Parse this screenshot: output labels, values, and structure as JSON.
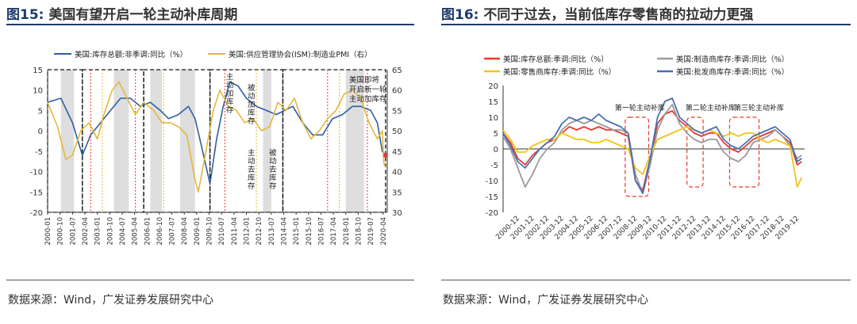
{
  "left": {
    "fig_num": "图15:",
    "fig_title": "美国有望开启一轮主动补库周期",
    "source": "数据来源：Wind，广发证券发展研究中心",
    "chart_data": {
      "type": "line",
      "legend": [
        "美国:库存总额:非季调:同比（%）",
        "美国:供应管理协会(ISM):制造业PMI（右）"
      ],
      "legend_placement": "top",
      "ylim_left": [
        -20,
        15
      ],
      "ylim_right": [
        30,
        65
      ],
      "yticks_left": [
        "15",
        "10",
        "5",
        "0",
        "-5",
        "-10",
        "-15",
        "-20"
      ],
      "yticks_right": [
        "65",
        "60",
        "55",
        "50",
        "45",
        "40",
        "35",
        "30"
      ],
      "x_ticks": [
        "2000-01",
        "2000-10",
        "2001-07",
        "2002-04",
        "2003-01",
        "2003-10",
        "2004-07",
        "2005-04",
        "2006-01",
        "2006-10",
        "2007-07",
        "2008-04",
        "2009-01",
        "2009-10",
        "2010-07",
        "2011-04",
        "2012-01",
        "2012-10",
        "2013-07",
        "2014-04",
        "2015-01",
        "2015-10",
        "2016-07",
        "2017-04",
        "2018-01",
        "2018-10",
        "2019-07",
        "2020-04"
      ],
      "annotations": [
        "主动加库存",
        "被动加库存",
        "主动去库存",
        "被动去库存",
        "美国即将开启新一轮主动加库存"
      ],
      "series": [
        {
          "name": "美国:库存总额:非季调:同比（%）",
          "color": "#2e5fa3",
          "axis": "left",
          "x": [
            2000.0,
            2000.8,
            2001.5,
            2002.1,
            2002.6,
            2003.2,
            2003.8,
            2004.4,
            2005.0,
            2005.6,
            2006.2,
            2006.8,
            2007.3,
            2007.9,
            2008.5,
            2008.9,
            2009.3,
            2009.8,
            2010.2,
            2010.6,
            2011.0,
            2011.5,
            2012.0,
            2012.6,
            2013.2,
            2013.8,
            2014.3,
            2014.8,
            2015.4,
            2016.0,
            2016.6,
            2017.2,
            2017.8,
            2018.4,
            2018.9,
            2019.5,
            2019.9,
            2020.2,
            2020.4
          ],
          "y": [
            7,
            8,
            2,
            -6,
            -1,
            2,
            5,
            8,
            8,
            6,
            7,
            5,
            3,
            4,
            6,
            3,
            -4,
            -13,
            -2,
            6,
            12,
            11,
            8,
            6,
            5,
            4,
            5,
            6,
            2,
            -1,
            -1,
            3,
            4,
            6,
            6,
            5,
            2,
            -5,
            -6
          ]
        },
        {
          "name": "美国:供应管理协会(ISM):制造业PMI（右）",
          "color": "#e3b83c",
          "axis": "right",
          "x": [
            2000.0,
            2000.6,
            2001.1,
            2001.5,
            2002.0,
            2002.5,
            2003.0,
            2003.4,
            2003.9,
            2004.3,
            2004.8,
            2005.3,
            2005.8,
            2006.4,
            2006.9,
            2007.4,
            2007.9,
            2008.4,
            2008.9,
            2009.1,
            2009.6,
            2010.0,
            2010.4,
            2010.9,
            2011.4,
            2011.9,
            2012.4,
            2012.9,
            2013.4,
            2013.9,
            2014.4,
            2014.9,
            2015.4,
            2015.9,
            2016.4,
            2016.9,
            2017.4,
            2017.9,
            2018.4,
            2018.9,
            2019.4,
            2019.9,
            2020.2,
            2020.3,
            2020.4
          ],
          "y": [
            57,
            51,
            43,
            44,
            50,
            52,
            48,
            54,
            60,
            62,
            58,
            54,
            57,
            55,
            52,
            52,
            51,
            49,
            38,
            35,
            46,
            55,
            60,
            56,
            55,
            52,
            53,
            50,
            51,
            57,
            55,
            58,
            52,
            48,
            50,
            53,
            55,
            59,
            60,
            58,
            52,
            48,
            50,
            42,
            41
          ]
        }
      ]
    }
  },
  "right": {
    "fig_num": "图16:",
    "fig_title": "不同于过去，当前低库存零售商的拉动力更强",
    "source": "数据来源：Wind，广发证券发展研究中心",
    "chart_data": {
      "type": "line",
      "legend": [
        "美国:库存总额:季调:同比（%）",
        "美国:制造商库存:季调:同比（%）",
        "美国:零售商库存:季调:同比（%）",
        "美国:批发商库存:季调:同比（%）"
      ],
      "legend_placement": "top",
      "ylim": [
        -20,
        20
      ],
      "yticks": [
        "20",
        "15",
        "10",
        "5",
        "0",
        "-5",
        "-10",
        "-15",
        "-20"
      ],
      "x_ticks": [
        "2000-12",
        "2001-12",
        "2002-12",
        "2003-12",
        "2004-12",
        "2005-12",
        "2006-12",
        "2007-12",
        "2008-12",
        "2009-12",
        "2010-12",
        "2011-12",
        "2012-12",
        "2013-12",
        "2014-12",
        "2015-12",
        "2016-12",
        "2017-12",
        "2018-12",
        "2019-12"
      ],
      "annotations": [
        "第一轮主动补库",
        "第二轮主动补库",
        "第三轮主动补库"
      ],
      "series": [
        {
          "name": "美国:库存总额:季调:同比（%）",
          "color": "#e8392b",
          "x": [
            2000.0,
            2000.5,
            2001.0,
            2001.5,
            2002.0,
            2002.5,
            2003.0,
            2003.5,
            2004.0,
            2004.5,
            2005.0,
            2005.5,
            2006.0,
            2006.5,
            2007.0,
            2007.5,
            2008.0,
            2008.5,
            2009.0,
            2009.5,
            2010.0,
            2010.5,
            2011.0,
            2011.5,
            2012.0,
            2012.5,
            2013.0,
            2013.5,
            2014.0,
            2014.5,
            2015.0,
            2015.5,
            2016.0,
            2016.5,
            2017.0,
            2017.5,
            2018.0,
            2018.5,
            2019.0,
            2019.5,
            2020.0,
            2020.3
          ],
          "y": [
            5,
            2,
            -3,
            -5,
            -2,
            0,
            2,
            3,
            5,
            7,
            6,
            7,
            6,
            7,
            6,
            6,
            5,
            4,
            -10,
            -13,
            -3,
            8,
            11,
            12,
            9,
            7,
            5,
            4,
            5,
            5,
            2,
            0,
            -1,
            1,
            3,
            4,
            5,
            6,
            4,
            2,
            -5,
            -4
          ]
        },
        {
          "name": "美国:制造商库存:季调:同比（%）",
          "color": "#9a9a9a",
          "x": [
            2000.0,
            2000.5,
            2001.0,
            2001.5,
            2002.0,
            2002.5,
            2003.0,
            2003.5,
            2004.0,
            2004.5,
            2005.0,
            2005.5,
            2006.0,
            2006.5,
            2007.0,
            2007.5,
            2008.0,
            2008.5,
            2009.0,
            2009.5,
            2010.0,
            2010.5,
            2011.0,
            2011.5,
            2012.0,
            2012.5,
            2013.0,
            2013.5,
            2014.0,
            2014.5,
            2015.0,
            2015.5,
            2016.0,
            2016.5,
            2017.0,
            2017.5,
            2018.0,
            2018.5,
            2019.0,
            2019.5,
            2020.0,
            2020.3
          ],
          "y": [
            4,
            0,
            -6,
            -12,
            -8,
            -3,
            0,
            2,
            6,
            8,
            9,
            8,
            9,
            8,
            7,
            6,
            6,
            5,
            -8,
            -14,
            -5,
            6,
            11,
            14,
            8,
            5,
            3,
            2,
            3,
            3,
            -1,
            -3,
            -4,
            -2,
            2,
            3,
            4,
            6,
            4,
            1,
            -3,
            -2
          ]
        },
        {
          "name": "美国:零售商库存:季调:同比（%）",
          "color": "#f2c418",
          "x": [
            2000.0,
            2000.5,
            2001.0,
            2001.5,
            2002.0,
            2002.5,
            2003.0,
            2003.5,
            2004.0,
            2004.5,
            2005.0,
            2005.5,
            2006.0,
            2006.5,
            2007.0,
            2007.5,
            2008.0,
            2008.5,
            2009.0,
            2009.5,
            2010.0,
            2010.5,
            2011.0,
            2011.5,
            2012.0,
            2012.5,
            2013.0,
            2013.5,
            2014.0,
            2014.5,
            2015.0,
            2015.5,
            2016.0,
            2016.5,
            2017.0,
            2017.5,
            2018.0,
            2018.5,
            2019.0,
            2019.5,
            2020.0,
            2020.3
          ],
          "y": [
            6,
            3,
            -1,
            -1,
            1,
            2,
            3,
            3,
            5,
            4,
            3,
            3,
            2,
            2,
            3,
            2,
            1,
            0,
            -6,
            -8,
            -2,
            3,
            4,
            5,
            6,
            7,
            6,
            5,
            6,
            5,
            4,
            5,
            4,
            5,
            5,
            3,
            2,
            3,
            2,
            1,
            -12,
            -9
          ]
        },
        {
          "name": "美国:批发商库存:季调:同比（%）",
          "color": "#4a6fb5",
          "x": [
            2000.0,
            2000.5,
            2001.0,
            2001.5,
            2002.0,
            2002.5,
            2003.0,
            2003.5,
            2004.0,
            2004.5,
            2005.0,
            2005.5,
            2006.0,
            2006.5,
            2007.0,
            2007.5,
            2008.0,
            2008.5,
            2009.0,
            2009.5,
            2010.0,
            2010.5,
            2011.0,
            2011.5,
            2012.0,
            2012.5,
            2013.0,
            2013.5,
            2014.0,
            2014.5,
            2015.0,
            2015.5,
            2016.0,
            2016.5,
            2017.0,
            2017.5,
            2018.0,
            2018.5,
            2019.0,
            2019.5,
            2020.0,
            2020.3
          ],
          "y": [
            5,
            1,
            -4,
            -6,
            -3,
            0,
            2,
            4,
            8,
            10,
            9,
            10,
            9,
            11,
            9,
            8,
            7,
            5,
            -10,
            -14,
            -3,
            10,
            15,
            16,
            10,
            8,
            6,
            5,
            6,
            7,
            3,
            1,
            0,
            2,
            4,
            5,
            6,
            7,
            5,
            3,
            -4,
            -3
          ]
        }
      ]
    }
  }
}
